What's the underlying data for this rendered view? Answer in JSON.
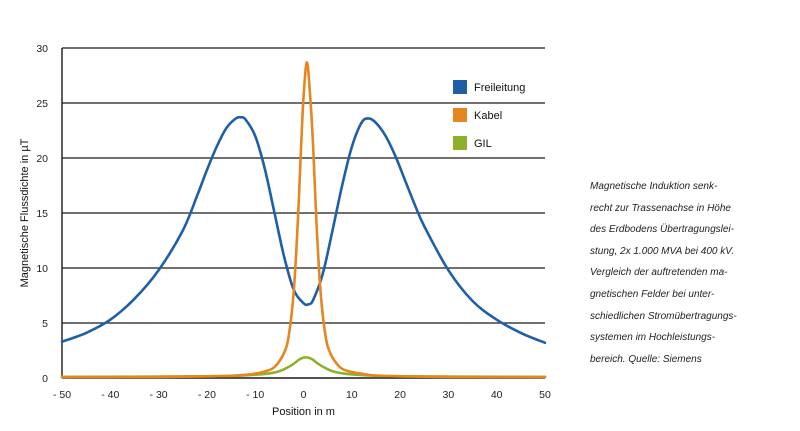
{
  "chart_data": {
    "type": "line",
    "xlabel": "Position in m",
    "ylabel": "Magnetische Flussdichte in µT",
    "xlim": [
      -50,
      50
    ],
    "ylim": [
      0,
      30
    ],
    "x_ticks": [
      "- 50",
      "- 40",
      "- 30",
      "- 20",
      "- 10",
      "0",
      "10",
      "20",
      "30",
      "40",
      "50"
    ],
    "y_ticks": [
      "0",
      "5",
      "10",
      "15",
      "20",
      "25",
      "30"
    ],
    "grid": "horizontal",
    "legend_position": "top-right",
    "series": [
      {
        "name": "Freileitung",
        "color": "#1f5fa6",
        "points": [
          [
            -50,
            3.3
          ],
          [
            -45,
            4.1
          ],
          [
            -40,
            5.3
          ],
          [
            -35,
            7.2
          ],
          [
            -30,
            9.8
          ],
          [
            -25,
            13.4
          ],
          [
            -22,
            16.6
          ],
          [
            -20,
            18.9
          ],
          [
            -18,
            21.0
          ],
          [
            -16,
            22.7
          ],
          [
            -14,
            23.6
          ],
          [
            -13,
            23.7
          ],
          [
            -12,
            23.5
          ],
          [
            -10,
            22.0
          ],
          [
            -8,
            19.0
          ],
          [
            -6,
            15.0
          ],
          [
            -4,
            11.0
          ],
          [
            -2,
            8.0
          ],
          [
            0,
            6.8
          ],
          [
            1,
            6.7
          ],
          [
            2,
            7.1
          ],
          [
            4,
            9.5
          ],
          [
            6,
            13.4
          ],
          [
            8,
            17.5
          ],
          [
            10,
            21.0
          ],
          [
            12,
            23.2
          ],
          [
            13.5,
            23.6
          ],
          [
            15,
            23.2
          ],
          [
            17,
            22.0
          ],
          [
            19,
            20.2
          ],
          [
            21,
            18.0
          ],
          [
            23,
            15.8
          ],
          [
            25,
            13.8
          ],
          [
            30,
            9.8
          ],
          [
            35,
            7.0
          ],
          [
            40,
            5.3
          ],
          [
            45,
            4.1
          ],
          [
            50,
            3.2
          ]
        ]
      },
      {
        "name": "Kabel",
        "color": "#e5861f",
        "points": [
          [
            -50,
            0.1
          ],
          [
            -30,
            0.1
          ],
          [
            -15,
            0.2
          ],
          [
            -10,
            0.4
          ],
          [
            -8,
            0.6
          ],
          [
            -6,
            1.0
          ],
          [
            -4,
            2.3
          ],
          [
            -3,
            4.0
          ],
          [
            -2,
            8.0
          ],
          [
            -1.2,
            14.0
          ],
          [
            -0.5,
            21.0
          ],
          [
            0,
            25.5
          ],
          [
            0.7,
            28.7
          ],
          [
            1.4,
            25.5
          ],
          [
            2,
            21.0
          ],
          [
            2.7,
            14.0
          ],
          [
            3.5,
            8.0
          ],
          [
            4.5,
            4.0
          ],
          [
            5.5,
            2.3
          ],
          [
            7.5,
            1.0
          ],
          [
            9.5,
            0.6
          ],
          [
            12,
            0.4
          ],
          [
            16,
            0.2
          ],
          [
            30,
            0.1
          ],
          [
            50,
            0.1
          ]
        ]
      },
      {
        "name": "GIL",
        "color": "#8db12a",
        "points": [
          [
            -50,
            0.1
          ],
          [
            -20,
            0.15
          ],
          [
            -10,
            0.3
          ],
          [
            -6,
            0.5
          ],
          [
            -4,
            0.8
          ],
          [
            -2,
            1.3
          ],
          [
            -1,
            1.65
          ],
          [
            0,
            1.85
          ],
          [
            1,
            1.85
          ],
          [
            2,
            1.65
          ],
          [
            3,
            1.3
          ],
          [
            5,
            0.8
          ],
          [
            7,
            0.5
          ],
          [
            11,
            0.3
          ],
          [
            20,
            0.15
          ],
          [
            50,
            0.1
          ]
        ]
      }
    ]
  },
  "caption": [
    "Magnetische Induktion senk-",
    "recht zur Trassenachse in Höhe",
    "des Erdbodens Übertragungslei-",
    "stung, 2x 1.000 MVA bei 400 kV.",
    "Vergleich der auftretenden ma-",
    "gnetischen Felder bei unter-",
    "schiedlichen Stromübertragungs-",
    "systemen im Hochleistungs-",
    "bereich. Quelle: Siemens"
  ]
}
